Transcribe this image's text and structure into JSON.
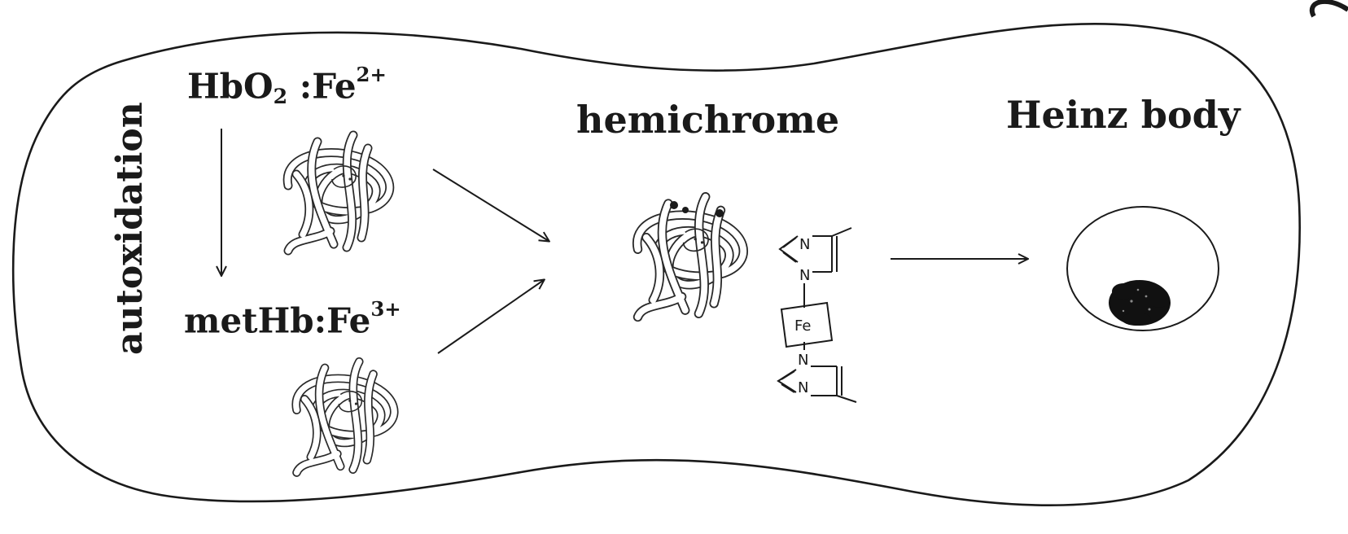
{
  "labels": {
    "autoxidation": "autoxidation",
    "hbo2": {
      "base": "HbO",
      "sub": "2",
      "sep": " :Fe",
      "sup": "2+"
    },
    "methb": {
      "base": "metHb:Fe",
      "sup": "3+"
    },
    "hemichrome": "hemichrome",
    "heinz_body": "Heinz body"
  },
  "structure": {
    "n_label": "N",
    "fe_label": "Fe"
  },
  "colors": {
    "ink": "#1a1a1a",
    "protein": "#2a2a2a",
    "background": "#ffffff"
  }
}
